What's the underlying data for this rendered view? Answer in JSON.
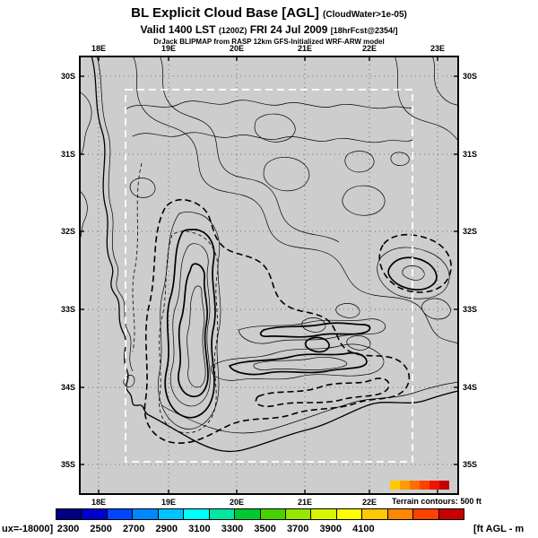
{
  "header": {
    "title": "BL Explicit Cloud Base [AGL]",
    "title_suffix": "(CloudWater>1e-05)",
    "valid_part1": "Valid 1400 LST",
    "valid_small1": "(1200Z)",
    "valid_part2": "FRI 24 Jul 2009",
    "valid_small2": "[18hrFcst@2354/]",
    "model_line": "DrJack BLIPMAP from RASP 12km GFS-Initialized WRF-ARW model"
  },
  "map": {
    "background_color": "#cdcdcd",
    "x_ticks_top": [
      "18E",
      "19E",
      "20E",
      "21E",
      "22E",
      "23E"
    ],
    "x_ticks_bottom": [
      "18E",
      "19E",
      "20E",
      "21E",
      "22E"
    ],
    "y_ticks_left": [
      "30S",
      "31S",
      "32S",
      "33S",
      "34S",
      "35S"
    ],
    "y_ticks_right": [
      "30S",
      "31S",
      "32S",
      "33S",
      "34S",
      "35S"
    ]
  },
  "footer": {
    "terrain_note": "Terrain contours: 500 ft",
    "left_fragment": "ux=-18000]",
    "right_fragment": "[ft AGL - m",
    "colorbar_values": [
      "2300",
      "2500",
      "2700",
      "2900",
      "3100",
      "3300",
      "3500",
      "3700",
      "3900",
      "4100"
    ],
    "colorbar_colors": [
      "#000080",
      "#0000cd",
      "#0045ff",
      "#0087ff",
      "#00c3ff",
      "#00ffff",
      "#00e6a0",
      "#00c832",
      "#46d200",
      "#96e600",
      "#d7f500",
      "#ffff00",
      "#ffc800",
      "#ff8700",
      "#ff4100",
      "#c80000"
    ],
    "terrain_strip_colors": [
      "#ffc800",
      "#ff9b00",
      "#ff6e00",
      "#ff4100",
      "#f01400",
      "#c00000"
    ]
  },
  "chart_data": {
    "type": "heatmap",
    "subtype": "geographic contour map: dashed cloud-base contours over solid terrain contours, gray land background, white dashed model-domain rectangle",
    "title": "BL Explicit Cloud Base [AGL] (CloudWater>1e-05)",
    "valid": "Valid 1400 LST (1200Z) FRI 24 Jul 2009 [18hrFcst@2354/]",
    "model": "DrJack BLIPMAP from RASP 12km GFS-Initialized WRF-ARW model",
    "x_axis": {
      "label": "longitude",
      "ticks": [
        "18E",
        "19E",
        "20E",
        "21E",
        "22E",
        "23E"
      ]
    },
    "y_axis": {
      "label": "latitude",
      "ticks": [
        "30S",
        "31S",
        "32S",
        "33S",
        "34S",
        "35S"
      ]
    },
    "colorbar": {
      "units_fragment": "[ft AGL - m",
      "left_fragment": "ux=-18000]",
      "tick_values": [
        2300,
        2500,
        2700,
        2900,
        3100,
        3300,
        3500,
        3700,
        3900,
        4100
      ],
      "tick_step": 200,
      "segments": 16,
      "orientation": "horizontal-bottom"
    },
    "terrain_contour_interval": "500 ft",
    "grid": true
  }
}
